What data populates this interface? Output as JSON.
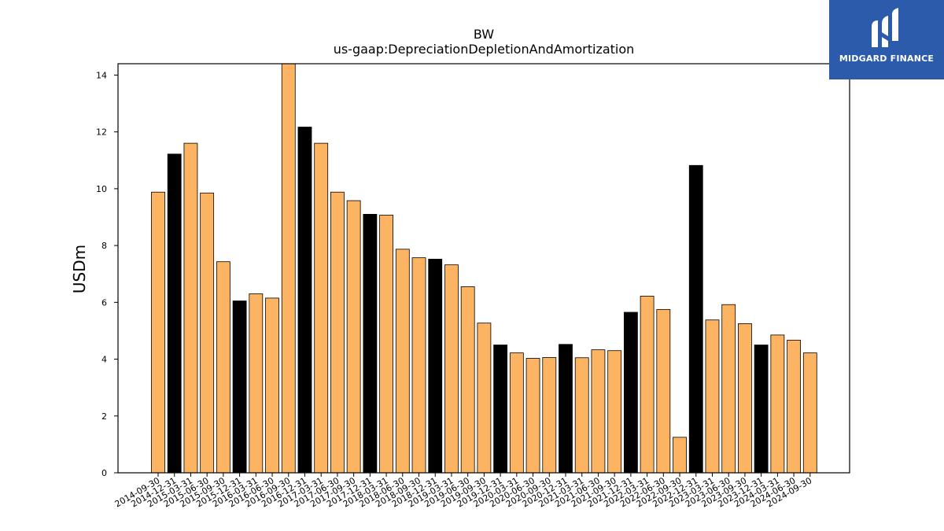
{
  "chart_data": {
    "type": "bar",
    "title": "BW",
    "subtitle": "us-gaap:DepreciationDepletionAndAmortization",
    "xlabel": "",
    "ylabel": "USDm",
    "ylim": [
      0,
      14.4
    ],
    "yticks": [
      0,
      2,
      4,
      6,
      8,
      10,
      12,
      14
    ],
    "grid": false,
    "colors": {
      "quarter": "#fdb462",
      "year_end": "#000000",
      "edge": "#000000"
    },
    "categories": [
      "2014-09-30",
      "2014-12-31",
      "2015-03-31",
      "2015-06-30",
      "2015-09-30",
      "2015-12-31",
      "2016-03-31",
      "2016-06-30",
      "2016-09-30",
      "2016-12-31",
      "2017-03-31",
      "2017-06-30",
      "2017-09-30",
      "2017-12-31",
      "2018-03-31",
      "2018-06-30",
      "2018-09-30",
      "2018-12-31",
      "2019-03-31",
      "2019-06-30",
      "2019-09-30",
      "2019-12-31",
      "2020-03-31",
      "2020-06-30",
      "2020-09-30",
      "2020-12-31",
      "2021-03-31",
      "2021-06-30",
      "2021-09-30",
      "2021-12-31",
      "2022-03-31",
      "2022-06-30",
      "2022-09-30",
      "2022-12-31",
      "2023-03-31",
      "2023-06-30",
      "2023-09-30",
      "2023-12-31",
      "2024-03-31",
      "2024-06-30",
      "2024-09-30"
    ],
    "values": [
      9.88,
      11.22,
      11.6,
      9.85,
      7.43,
      6.05,
      6.3,
      6.15,
      14.4,
      12.17,
      11.6,
      9.88,
      9.58,
      9.1,
      9.07,
      7.87,
      7.57,
      7.52,
      7.32,
      6.55,
      5.27,
      4.5,
      4.22,
      4.03,
      4.06,
      4.52,
      4.05,
      4.33,
      4.3,
      5.65,
      6.22,
      5.75,
      1.25,
      10.82,
      5.38,
      5.92,
      5.25,
      4.5,
      4.85,
      4.67,
      4.22
    ]
  },
  "logo": {
    "text": "MIDGARD FINANCE",
    "icon": "midgard-logo-icon"
  }
}
